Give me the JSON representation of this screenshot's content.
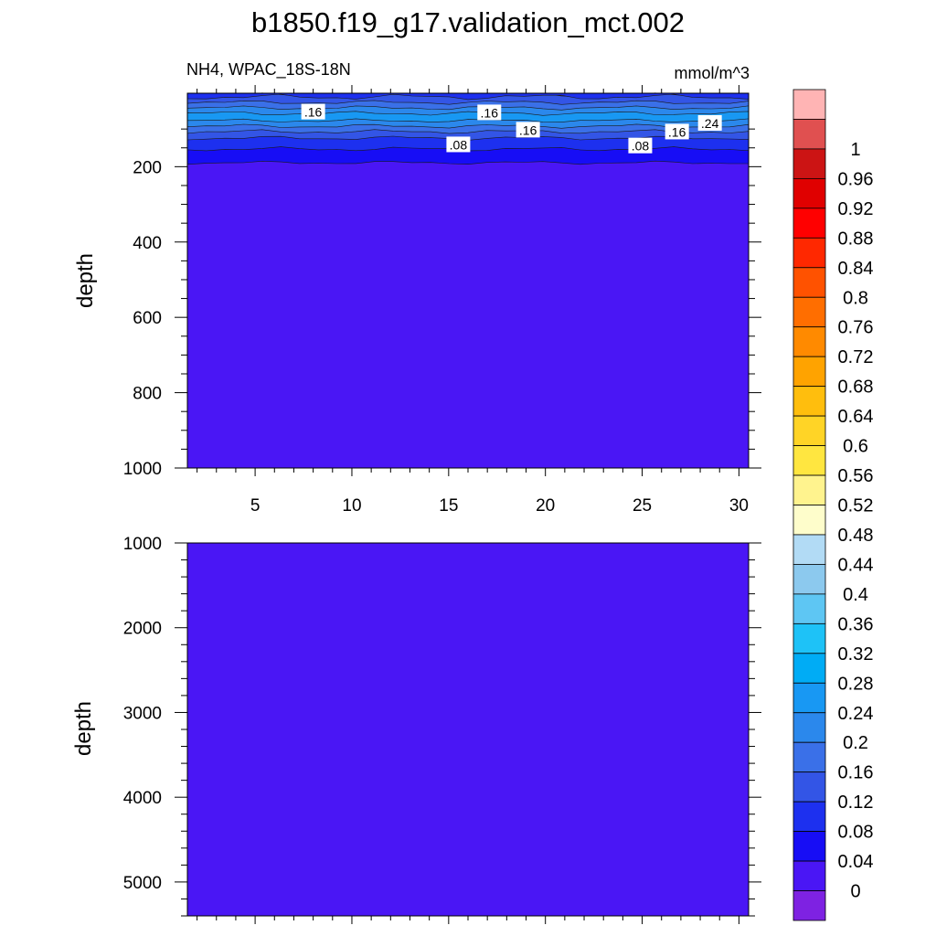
{
  "figure": {
    "title": "b1850.f19_g17.validation_mct.002",
    "subtitle_left": "NH4, WPAC_18S-18N",
    "subtitle_right": "mmol/m^3"
  },
  "colors": {
    "background_fill": "#4a16f5",
    "colorbar": [
      "#7e22e2",
      "#4a16f5",
      "#170df5",
      "#1d30ef",
      "#3355e6",
      "#3a70e8",
      "#2b88ec",
      "#1898f3",
      "#00acf5",
      "#1ec2f7",
      "#5ec6f3",
      "#8cc9ee",
      "#b2dbf5",
      "#fefdcb",
      "#fff38e",
      "#ffe640",
      "#ffd426",
      "#ffbe0d",
      "#ffa300",
      "#ff8a00",
      "#ff6e00",
      "#ff5200",
      "#ff2800",
      "#ff0000",
      "#e00000",
      "#cc1414",
      "#e05050",
      "#ffb4b4"
    ]
  },
  "chart_data": [
    {
      "type": "heatmap",
      "panel": "upper",
      "xlabel": "",
      "ylabel": "depth",
      "xlim": [
        1.5,
        30.5
      ],
      "ylim": [
        1000,
        5
      ],
      "x_ticks": [
        5,
        10,
        15,
        20,
        25,
        30
      ],
      "x_tick_labels": [
        "5",
        "10",
        "15",
        "20",
        "25",
        "30"
      ],
      "y_ticks": [
        200,
        400,
        600,
        800,
        1000
      ],
      "y_tick_labels": [
        "200",
        "400",
        "600",
        "800",
        "1000"
      ],
      "contour_labels": [
        {
          "text": ".16",
          "x": 8.0,
          "depth": 55
        },
        {
          "text": ".16",
          "x": 17.1,
          "depth": 57
        },
        {
          "text": ".16",
          "x": 19.1,
          "depth": 103
        },
        {
          "text": ".08",
          "x": 15.5,
          "depth": 142
        },
        {
          "text": ".08",
          "x": 24.9,
          "depth": 145
        },
        {
          "text": ".16",
          "x": 26.8,
          "depth": 108
        },
        {
          "text": ".24",
          "x": 28.5,
          "depth": 85
        }
      ]
    },
    {
      "type": "heatmap",
      "panel": "lower",
      "xlabel": "",
      "ylabel": "depth",
      "xlim": [
        1.5,
        30.5
      ],
      "ylim": [
        5400,
        1000
      ],
      "y_ticks": [
        1000,
        2000,
        3000,
        4000,
        5000
      ],
      "y_tick_labels": [
        "1000",
        "2000",
        "3000",
        "4000",
        "5000"
      ],
      "value_everywhere": 0
    }
  ],
  "colorbar": {
    "levels": [
      "0",
      "0.04",
      "0.08",
      "0.12",
      "0.16",
      "0.2",
      "0.24",
      "0.28",
      "0.32",
      "0.36",
      "0.4",
      "0.44",
      "0.48",
      "0.52",
      "0.56",
      "0.6",
      "0.64",
      "0.68",
      "0.72",
      "0.76",
      "0.8",
      "0.84",
      "0.88",
      "0.92",
      "0.96",
      "1"
    ]
  }
}
